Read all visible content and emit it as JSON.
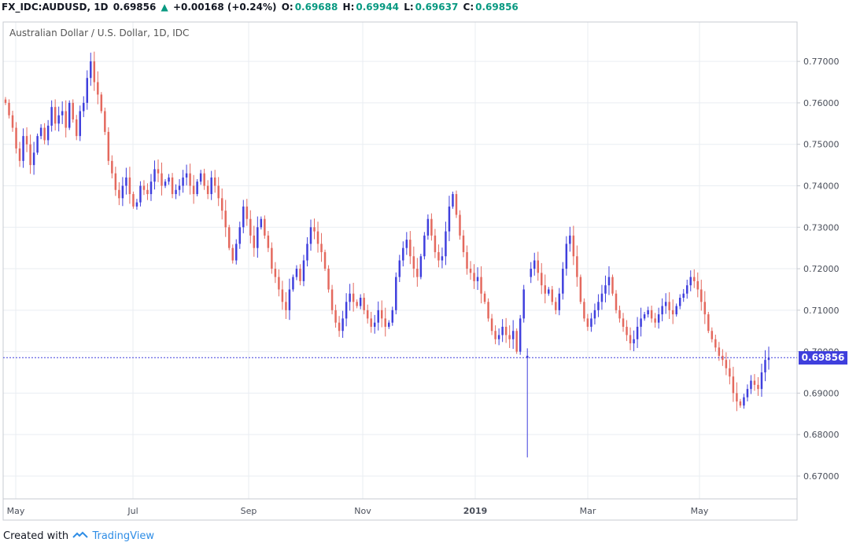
{
  "header": {
    "symbol": "FX_IDC:AUDUSD, 1D",
    "last": "0.69856",
    "change_icon": "up-triangle-icon",
    "change": "+0.00168 (+0.24%)",
    "o_label": "O:",
    "o_value": "0.69688",
    "h_label": "H:",
    "h_value": "0.69944",
    "l_label": "L:",
    "l_value": "0.69637",
    "c_label": "C:",
    "c_value": "0.69856"
  },
  "legend_title": "Australian Dollar / U.S. Dollar, 1D, IDC",
  "price_tag": "0.69856",
  "footer": {
    "created_with": "Created with",
    "logo_icon": "tradingview-cloud-icon",
    "brand": "TradingView"
  },
  "colors": {
    "up": "#3f3fdd",
    "down": "#e4695e",
    "grid": "#e9edf2",
    "price_line": "#3f3fdd"
  },
  "chart_data": {
    "type": "candlestick",
    "title": "Australian Dollar / U.S. Dollar, 1D, IDC",
    "x_tick_labels": [
      "May",
      "Jul",
      "Sep",
      "Nov",
      "2019",
      "Mar",
      "May"
    ],
    "y_tick_labels": [
      "0.77000",
      "0.76000",
      "0.75000",
      "0.74000",
      "0.73000",
      "0.72000",
      "0.71000",
      "0.70000",
      "0.69000",
      "0.68000",
      "0.67000"
    ],
    "ylim": [
      0.6645,
      0.7795
    ],
    "grid": true,
    "last_price": 0.69856,
    "path_closes": [
      0.76,
      0.757,
      0.754,
      0.749,
      0.746,
      0.752,
      0.75,
      0.745,
      0.748,
      0.752,
      0.754,
      0.751,
      0.7545,
      0.759,
      0.755,
      0.757,
      0.758,
      0.754,
      0.76,
      0.756,
      0.752,
      0.758,
      0.76,
      0.766,
      0.77,
      0.765,
      0.762,
      0.758,
      0.753,
      0.746,
      0.743,
      0.739,
      0.737,
      0.74,
      0.742,
      0.738,
      0.735,
      0.736,
      0.74,
      0.739,
      0.738,
      0.741,
      0.744,
      0.743,
      0.74,
      0.741,
      0.742,
      0.738,
      0.739,
      0.74,
      0.742,
      0.743,
      0.74,
      0.738,
      0.741,
      0.743,
      0.74,
      0.738,
      0.742,
      0.74,
      0.737,
      0.734,
      0.73,
      0.725,
      0.722,
      0.726,
      0.73,
      0.735,
      0.732,
      0.728,
      0.725,
      0.73,
      0.732,
      0.728,
      0.725,
      0.72,
      0.718,
      0.715,
      0.712,
      0.71,
      0.715,
      0.718,
      0.72,
      0.717,
      0.722,
      0.726,
      0.73,
      0.729,
      0.726,
      0.724,
      0.72,
      0.715,
      0.71,
      0.707,
      0.705,
      0.708,
      0.712,
      0.714,
      0.712,
      0.711,
      0.713,
      0.71,
      0.708,
      0.706,
      0.707,
      0.71,
      0.708,
      0.706,
      0.707,
      0.71,
      0.718,
      0.722,
      0.725,
      0.727,
      0.723,
      0.72,
      0.718,
      0.723,
      0.728,
      0.732,
      0.728,
      0.724,
      0.722,
      0.723,
      0.729,
      0.735,
      0.738,
      0.733,
      0.728,
      0.724,
      0.72,
      0.719,
      0.717,
      0.718,
      0.714,
      0.712,
      0.708,
      0.705,
      0.703,
      0.704,
      0.706,
      0.704,
      0.703,
      0.705,
      0.7,
      0.708,
      0.715,
      0.718,
      0.72,
      0.722,
      0.719,
      0.716,
      0.714,
      0.715,
      0.712,
      0.71,
      0.714,
      0.72,
      0.726,
      0.728,
      0.723,
      0.718,
      0.712,
      0.708,
      0.706,
      0.708,
      0.71,
      0.712,
      0.714,
      0.716,
      0.718,
      0.714,
      0.71,
      0.708,
      0.706,
      0.704,
      0.702,
      0.703,
      0.706,
      0.708,
      0.709,
      0.71,
      0.708,
      0.707,
      0.709,
      0.711,
      0.712,
      0.71,
      0.709,
      0.711,
      0.713,
      0.714,
      0.716,
      0.718,
      0.717,
      0.715,
      0.712,
      0.709,
      0.705,
      0.703,
      0.701,
      0.699,
      0.698,
      0.696,
      0.694,
      0.69,
      0.688,
      0.687,
      0.689,
      0.691,
      0.693,
      0.692,
      0.691,
      0.695,
      0.698,
      0.6986
    ],
    "special_candles": [
      {
        "index": 147,
        "open": 0.6985,
        "high": 0.7008,
        "low": 0.6745,
        "close": 0.699
      }
    ]
  }
}
